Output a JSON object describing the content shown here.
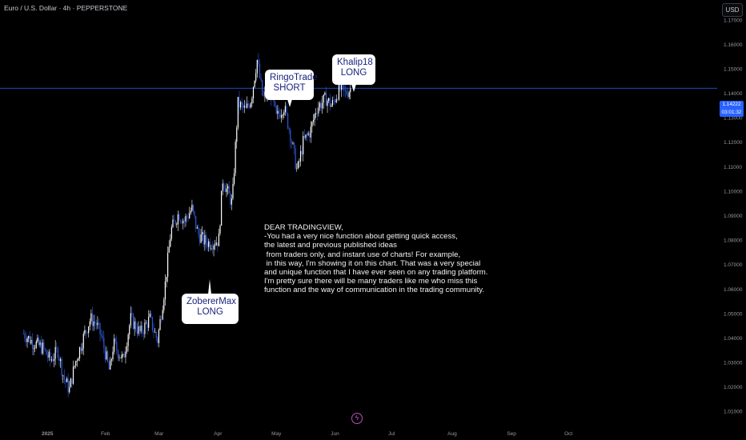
{
  "header": {
    "symbol_title": "Euro / U.S. Dollar · 4h · PEPPERSTONE"
  },
  "toolbar": {
    "currency_button": "USD"
  },
  "price_label": {
    "price": "1.14222",
    "countdown": "03:01:32"
  },
  "chart_data": {
    "type": "candlestick",
    "x_ticks": [
      "2025",
      "Feb",
      "Mar",
      "Apr",
      "May",
      "Jun",
      "Jul",
      "Aug",
      "Sep",
      "Oct"
    ],
    "y_ticks": [
      "1.17000",
      "1.16000",
      "1.15000",
      "1.14000",
      "1.13000",
      "1.12000",
      "1.11000",
      "1.10000",
      "1.09000",
      "1.08000",
      "1.07000",
      "1.06000",
      "1.05000",
      "1.04000",
      "1.03000",
      "1.02000",
      "1.01000"
    ],
    "ylim": [
      1.005,
      1.175
    ],
    "last_price": 1.14222,
    "grid": false,
    "colors": {
      "up": "#ffffff",
      "down": "#2f58d6",
      "price_line": "#2962ff",
      "background": "#000000"
    },
    "price_path": [
      [
        "Dec 20",
        1.042
      ],
      [
        "Dec 24",
        1.039
      ],
      [
        "Dec 30",
        1.036
      ],
      [
        "Jan 03",
        1.031
      ],
      [
        "Jan 07",
        1.035
      ],
      [
        "Jan 10",
        1.024
      ],
      [
        "Jan 13",
        1.019
      ],
      [
        "Jan 16",
        1.03
      ],
      [
        "Jan 21",
        1.042
      ],
      [
        "Jan 24",
        1.048
      ],
      [
        "Jan 27",
        1.046
      ],
      [
        "Jan 30",
        1.04
      ],
      [
        "Feb 03",
        1.026
      ],
      [
        "Feb 05",
        1.038
      ],
      [
        "Feb 10",
        1.031
      ],
      [
        "Feb 14",
        1.048
      ],
      [
        "Feb 19",
        1.042
      ],
      [
        "Feb 24",
        1.048
      ],
      [
        "Feb 28",
        1.039
      ],
      [
        "Mar 04",
        1.062
      ],
      [
        "Mar 07",
        1.084
      ],
      [
        "Mar 11",
        1.091
      ],
      [
        "Mar 14",
        1.088
      ],
      [
        "Mar 18",
        1.093
      ],
      [
        "Mar 21",
        1.083
      ],
      [
        "Mar 24",
        1.08
      ],
      [
        "Mar 27",
        1.079
      ],
      [
        "Apr 01",
        1.08
      ],
      [
        "Apr 03",
        1.105
      ],
      [
        "Apr 08",
        1.095
      ],
      [
        "Apr 11",
        1.136
      ],
      [
        "Apr 15",
        1.133
      ],
      [
        "Apr 18",
        1.138
      ],
      [
        "Apr 21",
        1.154
      ],
      [
        "Apr 24",
        1.138
      ],
      [
        "Apr 28",
        1.142
      ],
      [
        "May 01",
        1.13
      ],
      [
        "May 05",
        1.135
      ],
      [
        "May 08",
        1.125
      ],
      [
        "May 12",
        1.108
      ],
      [
        "May 15",
        1.12
      ],
      [
        "May 19",
        1.125
      ],
      [
        "May 22",
        1.134
      ],
      [
        "May 27",
        1.138
      ],
      [
        "May 30",
        1.135
      ],
      [
        "Jun 03",
        1.142
      ],
      [
        "Jun 06",
        1.14
      ],
      [
        "Jun 09",
        1.1422
      ]
    ]
  },
  "annotations": {
    "callouts": [
      {
        "l1": "RingoTrade",
        "l2": "SHORT"
      },
      {
        "l1": "Khalip18",
        "l2": "LONG"
      },
      {
        "l1": "ZobererMax",
        "l2": "LONG"
      }
    ],
    "note_lines": [
      "DEAR TRADINGVIEW,",
      "",
      "-You had a very nice function about getting quick access,",
      "the latest and previous published ideas",
      " from traders only, and instant use of charts! For example,",
      " in this way, I'm showing it on this chart. That was a very special",
      "and unique function that I have ever seen on any trading platform.",
      "I'm pretty sure there will be many traders like me who miss this",
      "function and the way of communication in the trading community."
    ]
  }
}
